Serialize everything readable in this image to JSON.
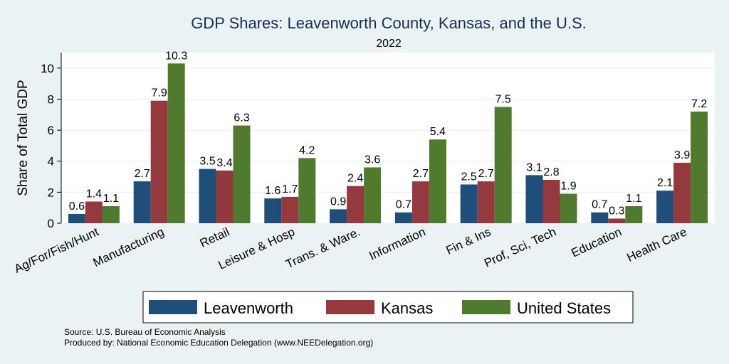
{
  "chart_data": {
    "type": "bar",
    "title": "GDP Shares: Leavenworth County, Kansas, and the U.S.",
    "subtitle": "2022",
    "ylabel": "Share of Total GDP",
    "xlabel": "",
    "ylim": [
      0,
      11
    ],
    "yticks": [
      0,
      2,
      4,
      6,
      8,
      10
    ],
    "grid": true,
    "legend_position": "bottom",
    "categories": [
      "Ag/For/Fish/Hunt",
      "Manufacturing",
      "Retail",
      "Leisure & Hosp",
      "Trans. & Ware.",
      "Information",
      "Fin & Ins",
      "Prof, Sci, Tech",
      "Education",
      "Health Care"
    ],
    "series": [
      {
        "name": "Leavenworth",
        "color": "#1f4e79",
        "values": [
          0.6,
          2.7,
          3.5,
          1.6,
          0.9,
          0.7,
          2.5,
          3.1,
          0.7,
          2.1
        ]
      },
      {
        "name": "Kansas",
        "color": "#943a3e",
        "values": [
          1.4,
          7.9,
          3.4,
          1.7,
          2.4,
          2.7,
          2.7,
          2.8,
          0.3,
          3.9
        ]
      },
      {
        "name": "United States",
        "color": "#507a2d",
        "values": [
          1.1,
          10.3,
          6.3,
          4.2,
          3.6,
          5.4,
          7.5,
          1.9,
          1.1,
          7.2
        ]
      }
    ]
  },
  "notes": {
    "source": "Source: U.S. Bureau of Economic Analysis",
    "produced_by": "Produced by: National Economic Education Delegation (www.NEEDelegation.org)"
  }
}
